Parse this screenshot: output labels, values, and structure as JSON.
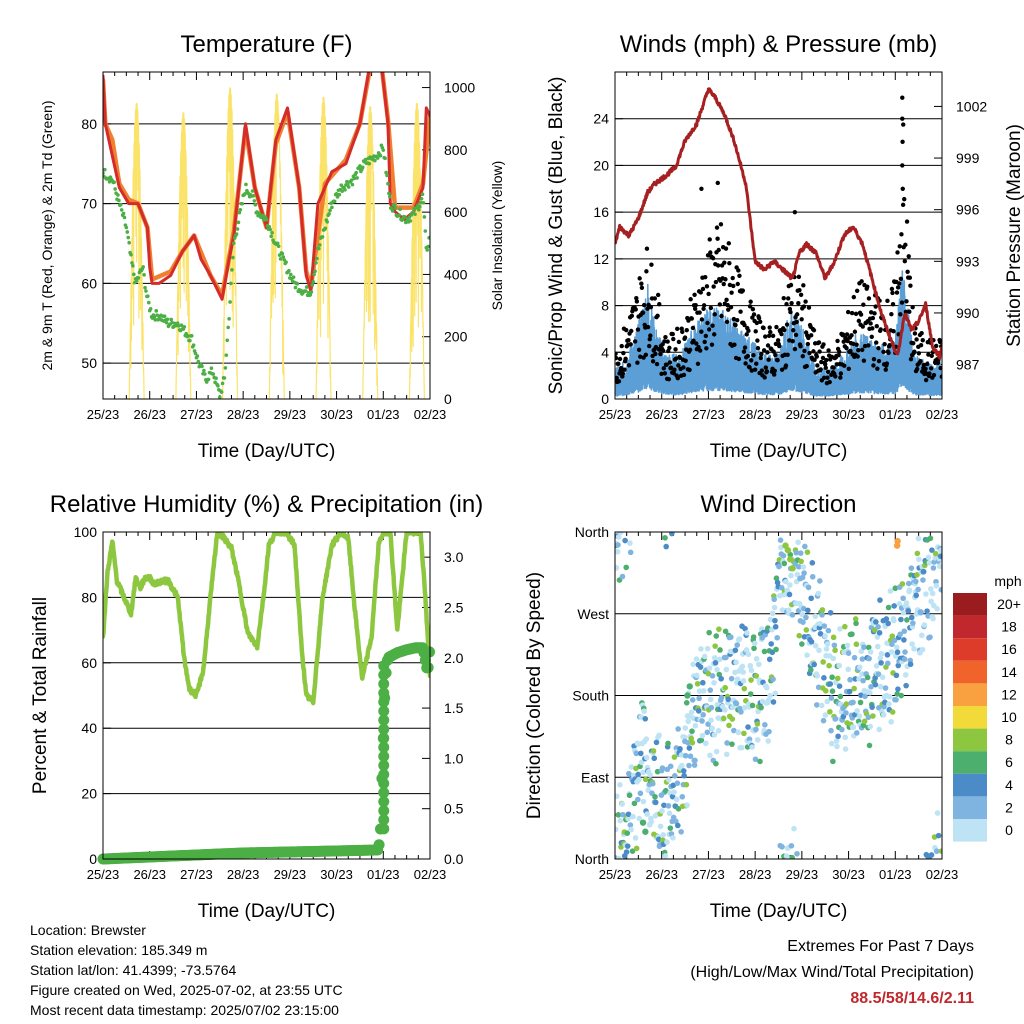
{
  "footer": {
    "location": "Location: Brewster",
    "elevation": "Station elevation: 185.349 m",
    "latlon": "Station lat/lon: 41.4399; -73.5764",
    "created": "Figure created on Wed, 2025-07-02, at 23:55 UTC",
    "recent": "Most recent data timestamp: 2025/07/02 23:15:00",
    "extremes_title": "Extremes For Past 7 Days",
    "extremes_sub": "(High/Low/Max Wind/Total Precipitation)",
    "extremes_value": "88.5/58/14.6/2.11"
  },
  "colors": {
    "temp2m": "#d42b2b",
    "temp9m": "#f08030",
    "dewpoint": "#4caf45",
    "solar": "#fbe36a",
    "gust": "#000000",
    "wind": "#5b9fd6",
    "pressure": "#a62021",
    "rh": "#8dc63f",
    "precip": "#4caf45"
  },
  "chart_data": [
    {
      "type": "line",
      "title": "Temperature (F)",
      "xlabel": "Time (Day/UTC)",
      "ylabel": "2m & 9m T (Red, Orange) & 2m Td (Green)",
      "y2label": "Solar Insolation (Yellow)",
      "xticks": [
        "25/23",
        "26/23",
        "27/23",
        "28/23",
        "29/23",
        "30/23",
        "01/23",
        "02/23"
      ],
      "xlim": [
        0,
        7
      ],
      "ylim": [
        45.5,
        86.5
      ],
      "yticks": [
        50,
        60,
        70,
        80
      ],
      "y2lim": [
        0,
        1050
      ],
      "y2ticks": [
        0,
        200,
        400,
        600,
        800,
        1000
      ],
      "grid": true,
      "series": [
        {
          "key": "temp2m",
          "x": [
            0,
            0.05,
            0.2,
            0.35,
            0.55,
            0.75,
            0.95,
            1.0,
            1.05,
            1.2,
            1.45,
            1.7,
            1.95,
            2.1,
            2.3,
            2.55,
            2.7,
            2.8,
            3.05,
            3.25,
            3.5,
            3.7,
            3.95,
            4.2,
            4.35,
            4.45,
            4.6,
            4.75,
            4.9,
            5.2,
            5.5,
            5.7,
            5.95,
            6.1,
            6.15,
            6.25,
            6.45,
            6.65,
            6.85,
            6.92,
            7.0
          ],
          "y": [
            86,
            80,
            76,
            72,
            70,
            70,
            67,
            62,
            60,
            60,
            61,
            64,
            66,
            63,
            61,
            58,
            63,
            66,
            80,
            72,
            67,
            78,
            82,
            72,
            61,
            59,
            70,
            72,
            74,
            75,
            80,
            87,
            88,
            80,
            70,
            69,
            68,
            69,
            72,
            82,
            81
          ]
        },
        {
          "key": "temp9m",
          "x": [
            0,
            0.05,
            0.2,
            0.35,
            0.55,
            0.75,
            0.95,
            1.05,
            1.45,
            1.7,
            1.95,
            2.3,
            2.55,
            2.8,
            3.05,
            3.25,
            3.5,
            3.7,
            3.95,
            4.2,
            4.35,
            4.45,
            4.75,
            5.2,
            5.5,
            5.7,
            5.95,
            6.1,
            6.25,
            6.65,
            6.85,
            7.0
          ],
          "y": [
            85.5,
            80,
            78,
            72.5,
            70.5,
            70,
            67,
            60.5,
            61.5,
            64,
            66,
            61,
            58.5,
            66.5,
            79.5,
            72,
            67,
            77.5,
            81.5,
            72,
            61.5,
            59.5,
            72.5,
            75.5,
            80,
            86.5,
            88,
            80.5,
            69.5,
            69.5,
            72.5,
            81
          ]
        },
        {
          "key": "dewpoint",
          "x": [
            0,
            0.2,
            0.35,
            0.5,
            0.6,
            0.7,
            0.85,
            0.95,
            1.05,
            1.2,
            1.4,
            1.6,
            1.75,
            1.9,
            2.05,
            2.2,
            2.35,
            2.5,
            2.6,
            2.7,
            2.8,
            3.05,
            3.2,
            3.3,
            3.5,
            3.7,
            3.85,
            4.1,
            4.3,
            4.45,
            4.6,
            4.75,
            4.9,
            5.1,
            5.35,
            5.6,
            5.85,
            6.0,
            6.15,
            6.3,
            6.5,
            6.7,
            6.85,
            6.92,
            7.0
          ],
          "y": [
            74,
            73,
            70,
            67,
            63,
            60,
            62,
            58,
            56,
            56,
            55,
            55,
            54,
            53,
            50,
            48,
            49,
            46,
            48,
            56,
            65,
            72,
            71,
            69,
            68,
            65,
            63,
            60,
            59,
            59,
            64,
            67,
            70,
            72,
            73,
            75,
            76,
            77,
            70,
            69,
            68,
            69,
            71,
            64,
            66
          ]
        },
        {
          "key": "solar",
          "axis": "y2",
          "peaks": [
            0.72,
            1.72,
            2.72,
            3.72,
            4.72,
            5.72,
            6.72
          ],
          "values": [
            950,
            920,
            1000,
            980,
            970,
            940,
            950
          ],
          "width": 0.32
        }
      ]
    },
    {
      "type": "scatter",
      "title": "Winds (mph) & Pressure (mb)",
      "xlabel": "Time (Day/UTC)",
      "ylabel": "Sonic/Prop Wind & Gust (Blue, Black)",
      "y2label": "Station Pressure (Maroon)",
      "xticks": [
        "25/23",
        "26/23",
        "27/23",
        "28/23",
        "29/23",
        "30/23",
        "01/23",
        "02/23"
      ],
      "xlim": [
        0,
        7
      ],
      "ylim": [
        0,
        28
      ],
      "yticks": [
        0,
        4,
        8,
        12,
        16,
        20,
        24
      ],
      "y2lim": [
        985,
        1004
      ],
      "y2ticks": [
        987,
        990,
        993,
        996,
        999,
        1002
      ],
      "grid": true,
      "series": [
        {
          "key": "pressure",
          "axis": "y2",
          "x": [
            0,
            0.1,
            0.3,
            0.5,
            0.7,
            0.85,
            1.1,
            1.3,
            1.5,
            1.75,
            2.0,
            2.15,
            2.35,
            2.55,
            2.8,
            3.0,
            3.2,
            3.4,
            3.6,
            3.8,
            3.95,
            4.1,
            4.3,
            4.5,
            4.7,
            4.9,
            5.1,
            5.3,
            5.5,
            5.7,
            5.9,
            6.05,
            6.2,
            6.35,
            6.5,
            6.65,
            6.8,
            6.95,
            7.0
          ],
          "y": [
            994,
            995,
            994.5,
            995.5,
            997,
            997.5,
            998,
            998.5,
            1000,
            1001,
            1003,
            1002.5,
            1001.5,
            1000,
            997.5,
            993,
            992.5,
            993,
            992.5,
            992,
            993.5,
            994,
            993.5,
            992,
            993,
            994.5,
            995,
            994,
            992,
            990,
            988.5,
            987.5,
            990,
            989,
            989.5,
            990.5,
            988,
            987.5,
            988
          ]
        },
        {
          "key": "gust",
          "note": "envelope of scattered gust points",
          "x": [
            0,
            0.2,
            0.5,
            0.7,
            0.85,
            1.1,
            1.4,
            1.7,
            2.0,
            2.3,
            2.6,
            2.9,
            3.2,
            3.5,
            3.75,
            4.0,
            4.3,
            4.6,
            4.9,
            5.2,
            5.5,
            5.8,
            6.0,
            6.15,
            6.4,
            6.7,
            7.0
          ],
          "y": [
            4,
            6,
            10,
            13,
            10,
            5,
            6,
            9,
            13,
            15,
            11,
            8,
            6,
            6,
            11,
            10,
            5,
            4,
            6,
            10,
            9,
            8,
            10,
            22,
            6,
            5,
            5
          ]
        },
        {
          "key": "wind",
          "note": "envelope of sustained wind",
          "x": [
            0,
            0.2,
            0.5,
            0.7,
            0.85,
            1.1,
            1.4,
            1.7,
            2.0,
            2.3,
            2.6,
            2.9,
            3.2,
            3.5,
            3.75,
            4.0,
            4.3,
            4.6,
            4.9,
            5.2,
            5.5,
            5.8,
            6.0,
            6.15,
            6.4,
            6.7,
            7.0
          ],
          "y": [
            2,
            2.5,
            5,
            8,
            5,
            3,
            3,
            5,
            6,
            6,
            5,
            4,
            3,
            3,
            6,
            5,
            2,
            2,
            3,
            4.5,
            4,
            3.5,
            4,
            9,
            3,
            2.5,
            2.5
          ]
        }
      ]
    },
    {
      "type": "line",
      "title": "Relative Humidity (%) & Precipitation (in)",
      "xlabel": "Time (Day/UTC)",
      "ylabel": "Percent & Total Rainfall",
      "xticks": [
        "25/23",
        "26/23",
        "27/23",
        "28/23",
        "29/23",
        "30/23",
        "01/23",
        "02/23"
      ],
      "xlim": [
        0,
        7
      ],
      "ylim": [
        0,
        100
      ],
      "yticks": [
        0,
        20,
        40,
        60,
        80,
        100
      ],
      "y2lim": [
        0,
        3.25
      ],
      "y2ticks": [
        "0.0",
        "0.5",
        "1.0",
        "1.5",
        "2.0",
        "2.5",
        "3.0"
      ],
      "grid": true,
      "series": [
        {
          "key": "rh",
          "x": [
            0,
            0.1,
            0.2,
            0.3,
            0.45,
            0.6,
            0.7,
            0.8,
            0.9,
            1.0,
            1.1,
            1.25,
            1.4,
            1.6,
            1.75,
            1.85,
            2.0,
            2.15,
            2.3,
            2.45,
            2.6,
            2.75,
            2.9,
            3.1,
            3.3,
            3.45,
            3.55,
            3.7,
            3.9,
            4.1,
            4.25,
            4.35,
            4.5,
            4.7,
            4.9,
            5.1,
            5.25,
            5.4,
            5.55,
            5.75,
            5.9,
            6.0,
            6.15,
            6.3,
            6.5,
            6.7,
            6.8,
            6.9,
            7.0
          ],
          "y": [
            68,
            88,
            97,
            85,
            80,
            75,
            86,
            83,
            86,
            86,
            84,
            85,
            85,
            80,
            60,
            52,
            50,
            58,
            80,
            100,
            98,
            95,
            85,
            69,
            65,
            82,
            96,
            100,
            100,
            96,
            65,
            50,
            48,
            80,
            96,
            100,
            98,
            75,
            55,
            68,
            96,
            100,
            100,
            70,
            100,
            100,
            100,
            80,
            56
          ]
        },
        {
          "key": "precip",
          "axis": "y2",
          "x": [
            0,
            1,
            2,
            3,
            4,
            5,
            5.9,
            5.95,
            5.97,
            6.0,
            6.02,
            6.05,
            6.08,
            6.1,
            6.3,
            6.5,
            6.7,
            6.85,
            6.95,
            7.0
          ],
          "y": [
            0.0,
            0.02,
            0.04,
            0.06,
            0.07,
            0.08,
            0.09,
            0.35,
            0.8,
            1.2,
            1.5,
            1.8,
            1.95,
            2.0,
            2.05,
            2.08,
            2.1,
            2.1,
            1.85,
            2.11
          ]
        }
      ]
    },
    {
      "type": "scatter",
      "title": "Wind Direction",
      "xlabel": "Time (Day/UTC)",
      "ylabel": "Direction (Colored By Speed)",
      "xticks": [
        "25/23",
        "26/23",
        "27/23",
        "28/23",
        "29/23",
        "30/23",
        "01/23",
        "02/23"
      ],
      "xlim": [
        0,
        7
      ],
      "ylim": [
        0,
        360
      ],
      "yticks": [
        "North",
        "East",
        "South",
        "West",
        "North"
      ],
      "grid": true,
      "colorbar": {
        "title": "mph",
        "labels": [
          "20+",
          "18",
          "16",
          "14",
          "12",
          "10",
          "8",
          "6",
          "4",
          "2",
          "0"
        ],
        "colors": [
          "#9b1c1f",
          "#c0282e",
          "#dd3c2a",
          "#f0642c",
          "#f9a040",
          "#f2da3a",
          "#8dc63f",
          "#4caf6d",
          "#4a8bc8",
          "#7fb4e1",
          "#bde3f5"
        ]
      },
      "series": [
        {
          "key": "direction",
          "note": "direction trend of scattered points",
          "x": [
            0,
            0.2,
            0.4,
            0.6,
            0.9,
            1.2,
            1.5,
            1.8,
            2.1,
            2.4,
            2.7,
            3.0,
            3.3,
            3.6,
            3.9,
            4.2,
            4.5,
            4.8,
            5.1,
            5.4,
            5.7,
            6.0,
            6.3,
            6.6,
            7.0
          ],
          "y": [
            30,
            20,
            60,
            110,
            60,
            60,
            120,
            170,
            180,
            185,
            190,
            180,
            200,
            330,
            320,
            260,
            200,
            185,
            195,
            200,
            210,
            230,
            260,
            300,
            340
          ]
        }
      ]
    }
  ]
}
